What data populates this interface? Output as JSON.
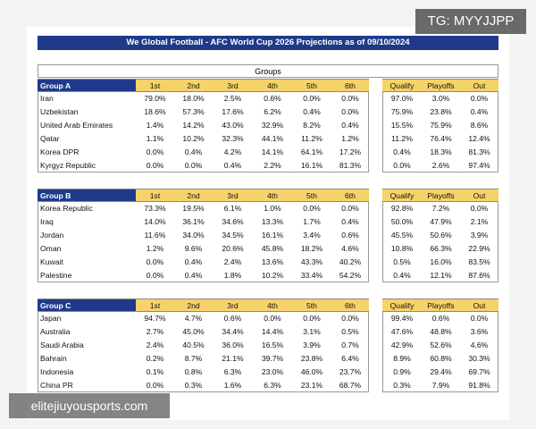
{
  "title": "We Global Football - AFC World Cup 2026 Projections as of 09/10/2024",
  "groups_label": "Groups",
  "columns": [
    "1st",
    "2nd",
    "3rd",
    "4th",
    "5th",
    "6th"
  ],
  "outcome_columns": [
    "Qualify",
    "Playoffs",
    "Out"
  ],
  "groups": [
    {
      "name": "Group A",
      "rows": [
        {
          "team": "Iran",
          "positions": [
            "79.0%",
            "18.0%",
            "2.5%",
            "0.6%",
            "0.0%",
            "0.0%"
          ],
          "outcomes": [
            "97.0%",
            "3.0%",
            "0.0%"
          ]
        },
        {
          "team": "Uzbekistan",
          "positions": [
            "18.6%",
            "57.3%",
            "17.6%",
            "6.2%",
            "0.4%",
            "0.0%"
          ],
          "outcomes": [
            "75.9%",
            "23.8%",
            "0.4%"
          ]
        },
        {
          "team": "United Arab Emirates",
          "positions": [
            "1.4%",
            "14.2%",
            "43.0%",
            "32.9%",
            "8.2%",
            "0.4%"
          ],
          "outcomes": [
            "15.5%",
            "75.9%",
            "8.6%"
          ]
        },
        {
          "team": "Qatar",
          "positions": [
            "1.1%",
            "10.2%",
            "32.3%",
            "44.1%",
            "11.2%",
            "1.2%"
          ],
          "outcomes": [
            "11.2%",
            "76.4%",
            "12.4%"
          ]
        },
        {
          "team": "Korea DPR",
          "positions": [
            "0.0%",
            "0.4%",
            "4.2%",
            "14.1%",
            "64.1%",
            "17.2%"
          ],
          "outcomes": [
            "0.4%",
            "18.3%",
            "81.3%"
          ]
        },
        {
          "team": "Kyrgyz Republic",
          "positions": [
            "0.0%",
            "0.0%",
            "0.4%",
            "2.2%",
            "16.1%",
            "81.3%"
          ],
          "outcomes": [
            "0.0%",
            "2.6%",
            "97.4%"
          ]
        }
      ]
    },
    {
      "name": "Group B",
      "rows": [
        {
          "team": "Korea Republic",
          "positions": [
            "73.3%",
            "19.5%",
            "6.1%",
            "1.0%",
            "0.0%",
            "0.0%"
          ],
          "outcomes": [
            "92.8%",
            "7.2%",
            "0.0%"
          ]
        },
        {
          "team": "Iraq",
          "positions": [
            "14.0%",
            "36.1%",
            "34.6%",
            "13.3%",
            "1.7%",
            "0.4%"
          ],
          "outcomes": [
            "50.0%",
            "47.9%",
            "2.1%"
          ]
        },
        {
          "team": "Jordan",
          "positions": [
            "11.6%",
            "34.0%",
            "34.5%",
            "16.1%",
            "3.4%",
            "0.6%"
          ],
          "outcomes": [
            "45.5%",
            "50.6%",
            "3.9%"
          ]
        },
        {
          "team": "Oman",
          "positions": [
            "1.2%",
            "9.6%",
            "20.6%",
            "45.8%",
            "18.2%",
            "4.6%"
          ],
          "outcomes": [
            "10.8%",
            "66.3%",
            "22.9%"
          ]
        },
        {
          "team": "Kuwait",
          "positions": [
            "0.0%",
            "0.4%",
            "2.4%",
            "13.6%",
            "43.3%",
            "40.2%"
          ],
          "outcomes": [
            "0.5%",
            "16.0%",
            "83.5%"
          ]
        },
        {
          "team": "Palestine",
          "positions": [
            "0.0%",
            "0.4%",
            "1.8%",
            "10.2%",
            "33.4%",
            "54.2%"
          ],
          "outcomes": [
            "0.4%",
            "12.1%",
            "87.6%"
          ]
        }
      ]
    },
    {
      "name": "Group C",
      "rows": [
        {
          "team": "Japan",
          "positions": [
            "94.7%",
            "4.7%",
            "0.6%",
            "0.0%",
            "0.0%",
            "0.0%"
          ],
          "outcomes": [
            "99.4%",
            "0.6%",
            "0.0%"
          ]
        },
        {
          "team": "Australia",
          "positions": [
            "2.7%",
            "45.0%",
            "34.4%",
            "14.4%",
            "3.1%",
            "0.5%"
          ],
          "outcomes": [
            "47.6%",
            "48.8%",
            "3.6%"
          ]
        },
        {
          "team": "Saudi Arabia",
          "positions": [
            "2.4%",
            "40.5%",
            "36.0%",
            "16.5%",
            "3.9%",
            "0.7%"
          ],
          "outcomes": [
            "42.9%",
            "52.6%",
            "4.6%"
          ]
        },
        {
          "team": "Bahrain",
          "positions": [
            "0.2%",
            "8.7%",
            "21.1%",
            "39.7%",
            "23.8%",
            "6.4%"
          ],
          "outcomes": [
            "8.9%",
            "60.8%",
            "30.3%"
          ]
        },
        {
          "team": "Indonesia",
          "positions": [
            "0.1%",
            "0.8%",
            "6.3%",
            "23.0%",
            "46.0%",
            "23.7%"
          ],
          "outcomes": [
            "0.9%",
            "29.4%",
            "69.7%"
          ]
        },
        {
          "team": "China PR",
          "positions": [
            "0.0%",
            "0.3%",
            "1.6%",
            "6.3%",
            "23.1%",
            "68.7%"
          ],
          "outcomes": [
            "0.3%",
            "7.9%",
            "91.8%"
          ]
        }
      ]
    }
  ],
  "watermarks": [
    "TG: MYYJJPP",
    "elitejiuyousports.com"
  ]
}
